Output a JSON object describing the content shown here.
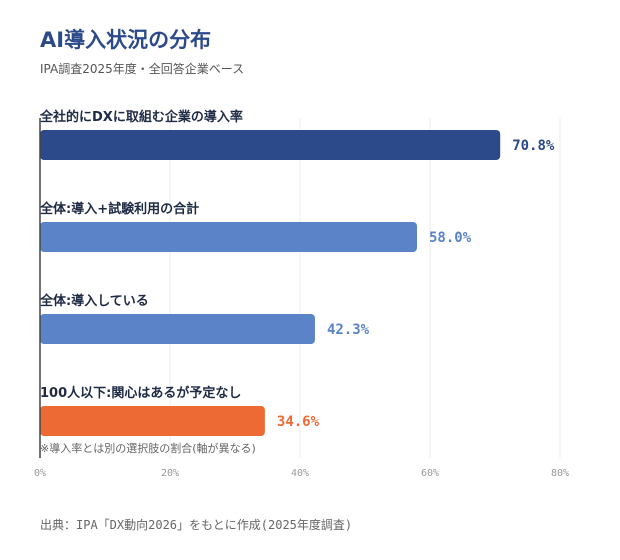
{
  "title": "AI導入状況の分布",
  "subtitle": "IPA調査2025年度・全回答企業ベース",
  "footer": "出典：IPA「DX動向2026」をもとに作成(2025年度調査)",
  "colors": {
    "dark": "#2c4a8a",
    "mid": "#5b84c8",
    "orange": "#ee6a35",
    "grid": "#ececec",
    "axis": "#444444"
  },
  "chart_data": {
    "type": "bar",
    "orientation": "horizontal",
    "categories": [
      "全社的にDXに取組む企業の導入率",
      "全体:導入+試験利用の合計",
      "全体:導入している",
      "100人以下:関心はあるが予定なし"
    ],
    "values": [
      70.8,
      58.0,
      42.3,
      34.6
    ],
    "value_labels": [
      "70.8%",
      "58.0%",
      "42.3%",
      "34.6%"
    ],
    "bar_colors": [
      "#2c4a8a",
      "#5b84c8",
      "#5b84c8",
      "#ee6a35"
    ],
    "xlim": [
      0,
      80
    ],
    "xticks": [
      0,
      20,
      40,
      60,
      80
    ],
    "xtick_labels": [
      "0%",
      "20%",
      "40%",
      "60%",
      "80%"
    ],
    "grid": true,
    "note": "※導入率とは別の選択肢の割合(軸が異なる)"
  }
}
